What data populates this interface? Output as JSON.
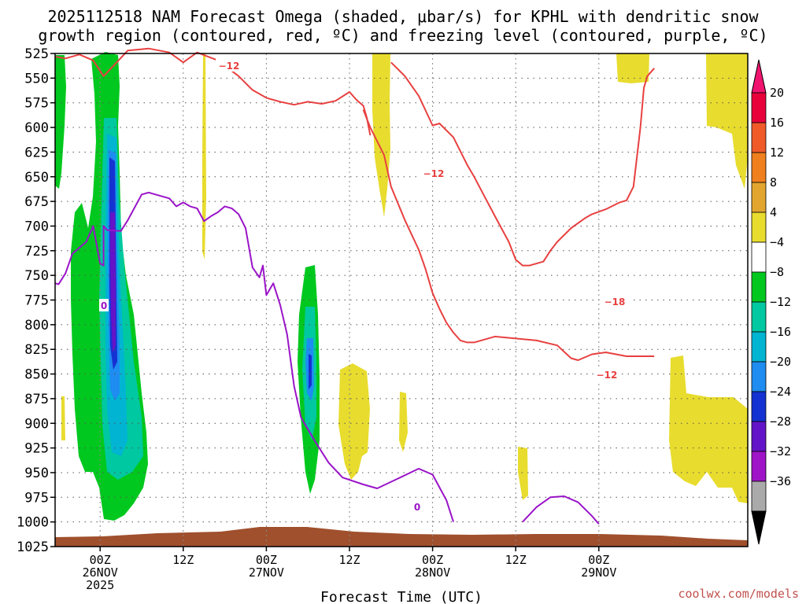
{
  "chart_data": {
    "type": "heatmap",
    "title_line1": "2025112518 NAM Forecast Omega (shaded, μbar/s) for KPHL with dendritic snow",
    "title_line2": "growth region (contoured, red, ºC) and freezing level (contoured, purple, ºC)",
    "xlabel": "Forecast Time (UTC)",
    "credit": "coolwx.com/models",
    "y_axis": {
      "unit": "hPa",
      "inverted": true,
      "range": [
        525,
        1025
      ],
      "ticks": [
        "525",
        "550",
        "575",
        "600",
        "625",
        "650",
        "675",
        "700",
        "725",
        "750",
        "775",
        "800",
        "825",
        "850",
        "875",
        "900",
        "925",
        "950",
        "975",
        "1000",
        "1025"
      ]
    },
    "x_axis": {
      "unit": "forecast hour",
      "range": [
        -6.5,
        93.5
      ],
      "ticks": [
        {
          "hour": 0,
          "line1": "00Z",
          "line2": "26NOV",
          "line3": "2025"
        },
        {
          "hour": 12,
          "line1": "12Z",
          "line2": "",
          "line3": ""
        },
        {
          "hour": 24,
          "line1": "00Z",
          "line2": "27NOV",
          "line3": ""
        },
        {
          "hour": 36,
          "line1": "12Z",
          "line2": "",
          "line3": ""
        },
        {
          "hour": 48,
          "line1": "00Z",
          "line2": "28NOV",
          "line3": ""
        },
        {
          "hour": 60,
          "line1": "12Z",
          "line2": "",
          "line3": ""
        },
        {
          "hour": 72,
          "line1": "00Z",
          "line2": "29NOV",
          "line3": ""
        }
      ]
    },
    "colorbar": {
      "levels": [
        "20",
        "16",
        "12",
        "8",
        "4",
        "−4",
        "−8",
        "−12",
        "−16",
        "−20",
        "−24",
        "−28",
        "−32",
        "−36"
      ],
      "colors": [
        "#e8003a",
        "#f05a28",
        "#f07f1e",
        "#e2a52e",
        "#e8dc2e",
        "#ffffff",
        "#00c81e",
        "#00c8a0",
        "#00b4d2",
        "#1e8cf0",
        "#1432d2",
        "#6414c8",
        "#a014c8",
        "#aaaaaa"
      ],
      "top_arrow_color": "#f0146e",
      "bottom_arrow_color": "#000000"
    },
    "contour_labels": [
      {
        "text": "−12",
        "color": "#e84040"
      },
      {
        "text": "−12",
        "color": "#e84040"
      },
      {
        "text": "−18",
        "color": "#e84040"
      },
      {
        "text": "−12",
        "color": "#e84040"
      },
      {
        "text": "0",
        "color": "#9a14c8"
      },
      {
        "text": "0",
        "color": "#9a14c8"
      }
    ],
    "series": [
      {
        "name": "-12C contour (upper)",
        "color": "#e84040",
        "points": [
          [
            -6.5,
            528
          ],
          [
            -5,
            530
          ],
          [
            -3,
            526
          ],
          [
            -1,
            532
          ],
          [
            0.5,
            548
          ],
          [
            2,
            537
          ],
          [
            4,
            522
          ],
          [
            7,
            520
          ],
          [
            10,
            524
          ],
          [
            12,
            534
          ],
          [
            14,
            524
          ],
          [
            17,
            532
          ],
          [
            20,
            548
          ],
          [
            22,
            562
          ],
          [
            24,
            570
          ],
          [
            26,
            574
          ],
          [
            28,
            577
          ],
          [
            30,
            574
          ],
          [
            32,
            576
          ],
          [
            34,
            573
          ],
          [
            36,
            564
          ],
          [
            37,
            572
          ],
          [
            38,
            578
          ],
          [
            38.5,
            590
          ],
          [
            39,
            608
          ]
        ]
      },
      {
        "name": "-12C contour (lower)",
        "color": "#e84040",
        "points": [
          [
            38,
            582
          ],
          [
            39,
            600
          ],
          [
            41,
            628
          ],
          [
            42,
            660
          ],
          [
            44,
            694
          ],
          [
            46,
            724
          ],
          [
            47,
            744
          ],
          [
            48,
            768
          ],
          [
            49,
            784
          ],
          [
            50,
            798
          ],
          [
            51,
            808
          ],
          [
            52,
            816
          ],
          [
            53,
            818
          ],
          [
            54,
            818
          ],
          [
            56,
            814
          ],
          [
            57,
            812
          ],
          [
            60,
            814
          ],
          [
            63,
            816
          ],
          [
            66,
            821
          ],
          [
            68,
            834
          ],
          [
            69,
            836
          ],
          [
            71,
            830
          ],
          [
            73,
            828
          ],
          [
            76,
            832
          ],
          [
            80,
            832
          ]
        ]
      },
      {
        "name": "-12C contour (upper right)",
        "color": "#e84040",
        "points": [
          [
            42,
            534
          ],
          [
            44,
            548
          ],
          [
            46,
            568
          ],
          [
            48,
            598
          ],
          [
            49,
            596
          ],
          [
            51,
            610
          ],
          [
            53,
            638
          ],
          [
            54,
            650
          ],
          [
            57,
            690
          ],
          [
            59,
            716
          ],
          [
            60,
            734
          ],
          [
            61,
            740
          ],
          [
            62,
            740
          ],
          [
            64,
            736
          ],
          [
            65,
            725
          ],
          [
            66,
            716
          ],
          [
            68,
            702
          ],
          [
            70,
            692
          ],
          [
            71,
            688
          ],
          [
            73,
            683
          ],
          [
            75,
            676
          ],
          [
            76,
            674
          ],
          [
            77,
            660
          ],
          [
            78,
            600
          ],
          [
            78.5,
            560
          ],
          [
            79,
            548
          ],
          [
            80,
            540
          ]
        ]
      },
      {
        "name": "0C freezing level",
        "color": "#9a14c8",
        "points": [
          [
            -6.5,
            758
          ],
          [
            -6,
            759
          ],
          [
            -5,
            748
          ],
          [
            -4,
            728
          ],
          [
            -2,
            716
          ],
          [
            -1,
            700
          ],
          [
            0,
            738
          ],
          [
            0.5,
            740
          ],
          [
            0.5,
            700
          ],
          [
            1,
            704
          ],
          [
            3,
            705
          ],
          [
            4,
            694
          ],
          [
            6,
            668
          ],
          [
            7,
            666
          ],
          [
            9,
            670
          ],
          [
            10,
            672
          ],
          [
            11,
            680
          ],
          [
            12,
            676
          ],
          [
            13,
            680
          ],
          [
            14,
            682
          ],
          [
            15,
            695
          ],
          [
            16,
            690
          ],
          [
            17,
            686
          ],
          [
            18,
            680
          ],
          [
            19,
            682
          ],
          [
            20,
            688
          ],
          [
            21,
            702
          ],
          [
            22,
            742
          ],
          [
            23,
            752
          ],
          [
            23.5,
            740
          ],
          [
            24,
            770
          ],
          [
            25,
            758
          ],
          [
            26,
            780
          ],
          [
            27,
            810
          ],
          [
            28,
            862
          ],
          [
            29,
            894
          ],
          [
            31,
            918
          ],
          [
            33,
            940
          ],
          [
            35,
            955
          ],
          [
            38,
            962
          ],
          [
            40,
            966
          ],
          [
            43,
            956
          ],
          [
            46,
            946
          ],
          [
            48,
            952
          ],
          [
            50,
            978
          ],
          [
            51,
            1000
          ]
        ]
      },
      {
        "name": "0C freezing level (lower right)",
        "color": "#9a14c8",
        "points": [
          [
            61,
            1000
          ],
          [
            63,
            985
          ],
          [
            65,
            975
          ],
          [
            67,
            974
          ],
          [
            69,
            980
          ],
          [
            71,
            994
          ],
          [
            72,
            1002
          ]
        ]
      }
    ],
    "shaded_regions": [
      {
        "name": "omega -8 band hour 0",
        "level": "−8"
      },
      {
        "name": "omega -24 core hour 0",
        "level": "−24"
      },
      {
        "name": "omega -8 band hour 25",
        "level": "−8"
      },
      {
        "name": "omega +4 patches",
        "level": "4"
      }
    ],
    "terrain": {
      "name": "surface",
      "pressure_approx": 1012,
      "color": "#a0502d"
    }
  }
}
